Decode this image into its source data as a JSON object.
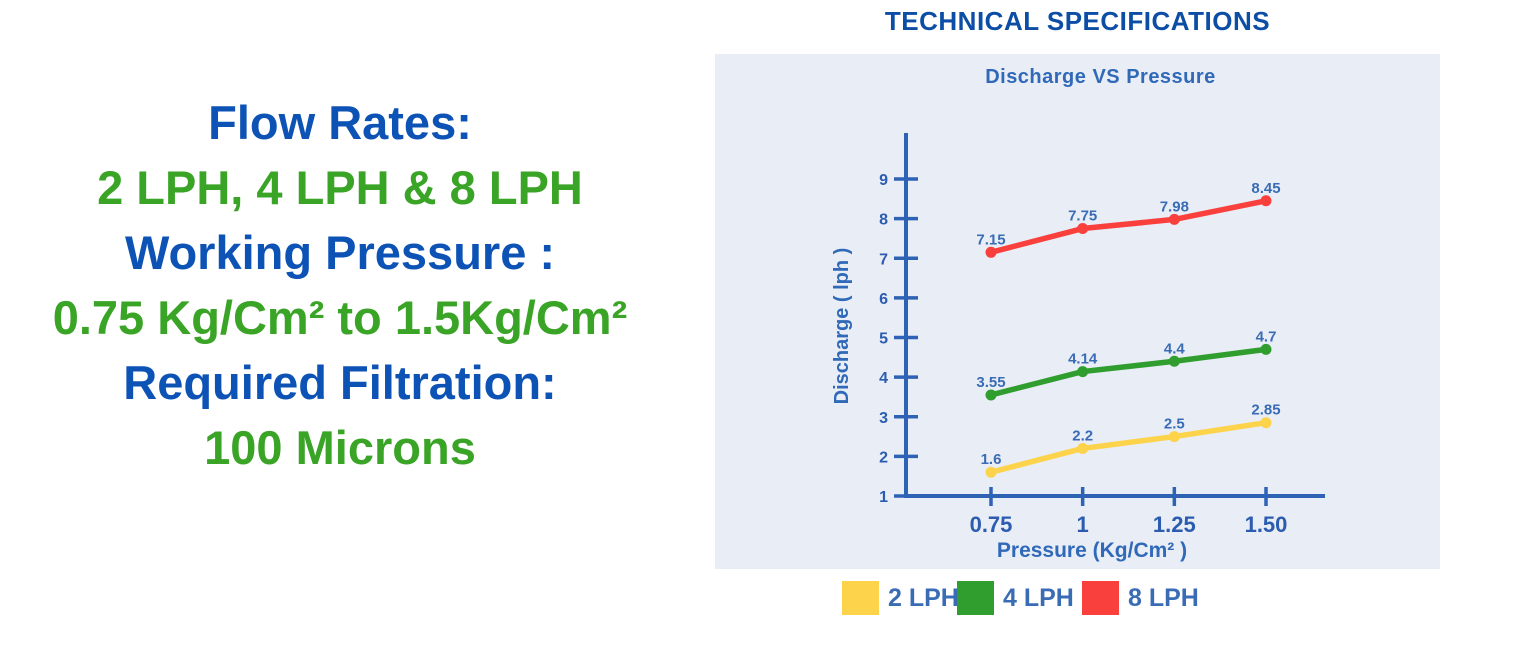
{
  "header": {
    "title": "TECHNICAL SPECIFICATIONS"
  },
  "specs": {
    "lines": [
      {
        "text": "Flow Rates:",
        "color": "text_blue"
      },
      {
        "text": "2 LPH, 4 LPH & 8 LPH",
        "color": "text_green"
      },
      {
        "text": "Working Pressure :",
        "color": "text_blue"
      },
      {
        "text": "0.75 Kg/Cm² to 1.5Kg/Cm²",
        "color": "text_green"
      },
      {
        "text": "Required Filtration:",
        "color": "text_blue"
      },
      {
        "text": "100 Microns",
        "color": "text_green"
      }
    ]
  },
  "colors": {
    "title_blue": "#0C4DA6",
    "text_blue": "#0D52B5",
    "text_green": "#3AA426",
    "chart_blue": "#3069B8",
    "axis_blue": "#2E62B5",
    "tick_label_blue": "#2B5CB0",
    "data_label_blue": "#3A6CB5",
    "legend_label_blue": "#3A6CB5",
    "panel_bg": "#E9EDF6"
  },
  "chart_data": {
    "type": "line",
    "title": "Discharge VS Pressure",
    "xlabel": "Pressure (Kg/Cm² )",
    "ylabel": "Discharge ( lph )",
    "x": [
      0.75,
      1,
      1.25,
      1.5
    ],
    "x_tick_labels": [
      "0.75",
      "1",
      "1.25",
      "1.50"
    ],
    "y_ticks": [
      1,
      2,
      3,
      4,
      5,
      6,
      7,
      8,
      9
    ],
    "ylim": [
      1,
      9
    ],
    "grid": false,
    "legend_position": "bottom",
    "series": [
      {
        "name": "2 LPH",
        "color": "#FCD34B",
        "values": [
          1.6,
          2.2,
          2.5,
          2.85
        ],
        "labels": [
          "1.6",
          "2.2",
          "2.5",
          "2.85"
        ]
      },
      {
        "name": "4 LPH",
        "color": "#2F9E2F",
        "values": [
          3.55,
          4.14,
          4.4,
          4.7
        ],
        "labels": [
          "3.55",
          "4.14",
          "4.4",
          "4.7"
        ]
      },
      {
        "name": "8 LPH",
        "color": "#F9403C",
        "values": [
          7.15,
          7.75,
          7.98,
          8.45
        ],
        "labels": [
          "7.15",
          "7.75",
          "7.98",
          "8.45"
        ]
      }
    ]
  }
}
